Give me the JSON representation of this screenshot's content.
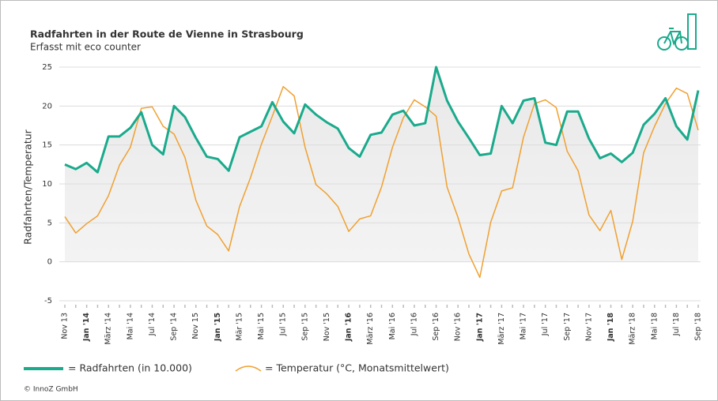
{
  "chart_data": {
    "type": "line",
    "title": "Radfahrten in der Route de Vienne in Strasbourg",
    "subtitle": "Erfasst mit eco counter",
    "ylabel": "Radfahrten/Temperatur",
    "footer": "© InnoZ GmbH",
    "categories": [
      "Nov 13",
      null,
      "Jan '14",
      null,
      "März '14",
      null,
      "Mai '14",
      null,
      "Jul '14",
      null,
      "Sep '14",
      null,
      "Nov 15",
      null,
      "Jan '15",
      null,
      "Mär '15",
      null,
      "Mai '15",
      null,
      "Jul '15",
      null,
      "Sep '15",
      null,
      "Nov '15",
      null,
      "Jan '16",
      null,
      "März '16",
      null,
      "Mai '16",
      null,
      "Jul '16",
      null,
      "Sep '16",
      null,
      "Nov '16",
      null,
      "Jan '17",
      null,
      "März '17",
      null,
      "Mai '17",
      null,
      "Jul '17",
      null,
      "Sep '17",
      null,
      "Nov '17",
      null,
      "Jan '18",
      null,
      "März '18",
      null,
      "Mai '18",
      null,
      "Jul '18",
      null,
      "Sep '18"
    ],
    "series": [
      {
        "name": "= Radfahrten (in 10.000)",
        "color": "#1aaa8c",
        "values": [
          12.5,
          11.9,
          12.7,
          11.5,
          16.1,
          16.1,
          17.2,
          19.2,
          15.0,
          13.8,
          20.0,
          18.6,
          15.9,
          13.5,
          13.2,
          11.7,
          16.0,
          16.7,
          17.4,
          20.5,
          18.0,
          16.5,
          20.2,
          18.9,
          17.9,
          17.1,
          14.6,
          13.5,
          16.3,
          16.6,
          18.9,
          19.4,
          17.5,
          17.8,
          25.0,
          20.7,
          18.0,
          15.9,
          13.7,
          13.9,
          20.0,
          17.8,
          20.7,
          21.0,
          15.3,
          15.0,
          19.3,
          19.3,
          15.8,
          13.3,
          13.9,
          12.8,
          14.0,
          17.6,
          19.0,
          21.0,
          17.4,
          15.7,
          22.0
        ]
      },
      {
        "name": "= Temperatur (°C, Monatsmittelwert)",
        "color": "#f0a030",
        "values": [
          5.8,
          3.7,
          4.9,
          5.9,
          8.5,
          12.4,
          14.7,
          19.7,
          19.9,
          17.4,
          16.4,
          13.4,
          7.9,
          4.6,
          3.5,
          1.4,
          7.1,
          10.8,
          15.1,
          18.7,
          22.5,
          21.3,
          14.7,
          9.9,
          8.7,
          7.1,
          3.9,
          5.5,
          5.9,
          9.6,
          14.7,
          18.5,
          20.8,
          19.9,
          18.7,
          9.6,
          5.7,
          1.0,
          -2.0,
          5.1,
          9.1,
          9.5,
          16.0,
          20.3,
          20.8,
          19.8,
          14.2,
          11.7,
          6.0,
          4.0,
          6.6,
          0.3,
          5.2,
          14.0,
          17.4,
          20.3,
          22.3,
          21.6,
          16.9
        ]
      }
    ],
    "ylim": [
      -5,
      25
    ],
    "yticks": [
      -5,
      0,
      5,
      10,
      15,
      20,
      25
    ],
    "grid": true
  }
}
